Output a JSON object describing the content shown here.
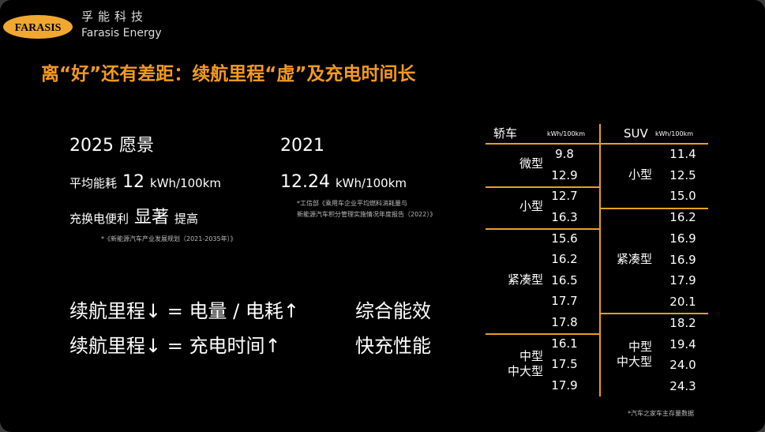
{
  "logo": {
    "mark": "FARASIS",
    "name_cn": "孚能科技",
    "name_en": "Farasis Energy"
  },
  "title": "离“好”还有差距：续航里程“虚”及充电时间长",
  "vision_2025": {
    "heading": "2025 愿景",
    "consumption": {
      "label": "平均能耗",
      "value": "12",
      "unit": "kWh/100km"
    },
    "charging": {
      "label": "充换电便利",
      "emphasis": "显著",
      "suffix": "提高"
    },
    "note": "*《新能源汽车产业发展规划（2021-2035年）》"
  },
  "actual_2021": {
    "heading": "2021",
    "value": "12.24",
    "unit": "kWh/100km",
    "note": [
      "*工信部《乘用车企业平均燃料消耗量与",
      "新能源汽车积分管理实施情况年度报告（2022）》"
    ]
  },
  "equations": [
    {
      "lhs": "续航里程↓ = 电量 / 电耗↑",
      "factor": "综合能效"
    },
    {
      "lhs": "续航里程↓ = 充电时间↑",
      "factor": "快充性能"
    }
  ],
  "table": {
    "columns": [
      {
        "name": "轿车",
        "unit": "kWh/100km",
        "groups": [
          {
            "label": [
              "微型"
            ],
            "values": [
              "9.8",
              "12.9"
            ]
          },
          {
            "label": [
              "小型"
            ],
            "values": [
              "12.7",
              "16.3"
            ]
          },
          {
            "label": [
              "紧凑型"
            ],
            "values": [
              "15.6",
              "16.2",
              "16.5",
              "17.7",
              "17.8"
            ]
          },
          {
            "label": [
              "中型",
              "中大型"
            ],
            "values": [
              "16.1",
              "17.5",
              "17.9"
            ]
          }
        ]
      },
      {
        "name": "SUV",
        "unit": "kWh/100km",
        "groups": [
          {
            "label": [
              "小型"
            ],
            "values": [
              "11.4",
              "12.5",
              "15.0"
            ]
          },
          {
            "label": [
              "紧凑型"
            ],
            "values": [
              "16.2",
              "16.9",
              "16.9",
              "17.9",
              "20.1"
            ]
          },
          {
            "label": [
              "中型",
              "中大型"
            ],
            "values": [
              "18.2",
              "19.4",
              "24.0",
              "24.3"
            ]
          }
        ]
      }
    ]
  },
  "source": "*汽车之家车主存量数据"
}
